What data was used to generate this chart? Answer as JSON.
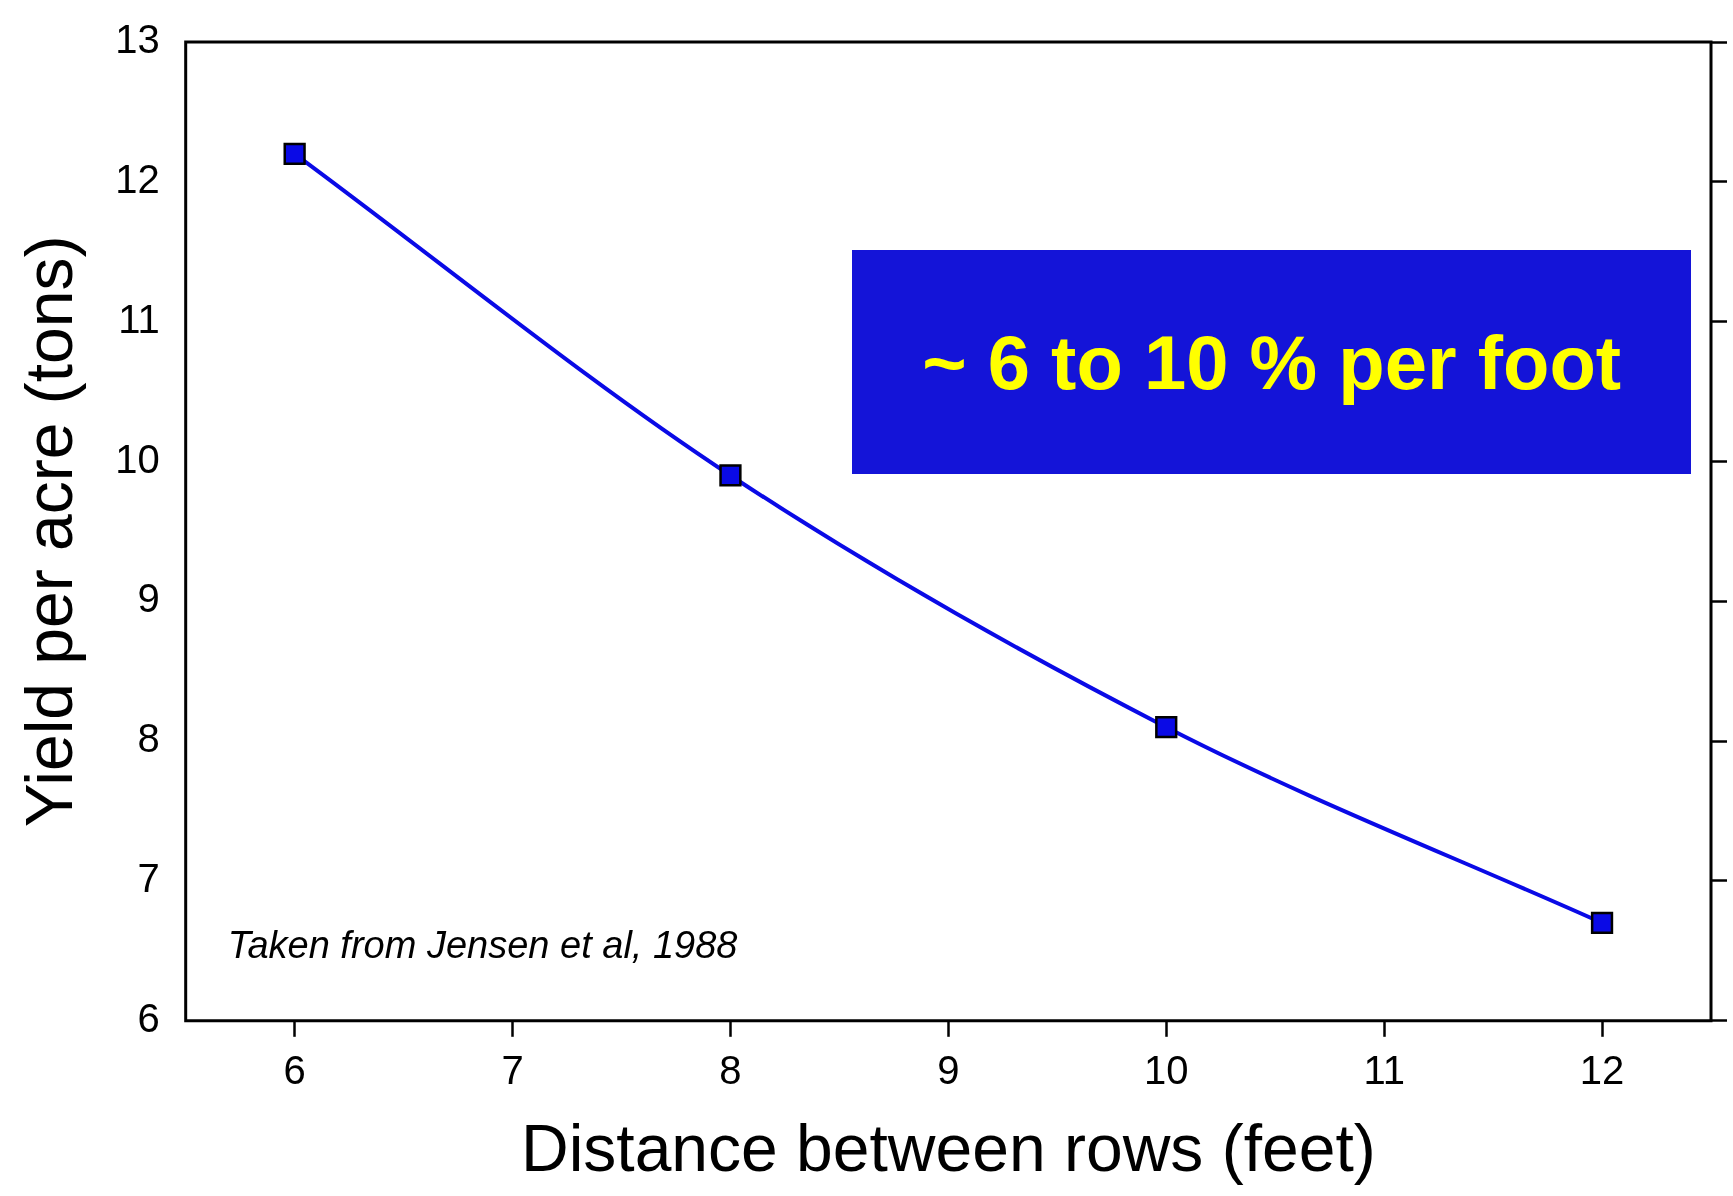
{
  "chart_data": {
    "type": "line",
    "xlabel": "Distance between rows (feet)",
    "ylabel": "Yield per acre (tons)",
    "x": [
      6,
      8,
      10,
      12
    ],
    "series": [
      {
        "color": "#0a0ae6",
        "values": [
          12.2,
          9.9,
          8.1,
          6.7
        ]
      }
    ],
    "xlim": [
      5.5,
      12.5
    ],
    "xticks": [
      6,
      7,
      8,
      9,
      10,
      11,
      12
    ],
    "ylim": [
      6,
      13
    ],
    "yticks": [
      6,
      7,
      8,
      9,
      10,
      11,
      12,
      13
    ],
    "marker": "square",
    "line_style": "solid",
    "grid": false,
    "legend": false,
    "annotations": [
      "Taken from Jensen et al, 1988",
      "~ 6 to 10 % per foot"
    ]
  }
}
